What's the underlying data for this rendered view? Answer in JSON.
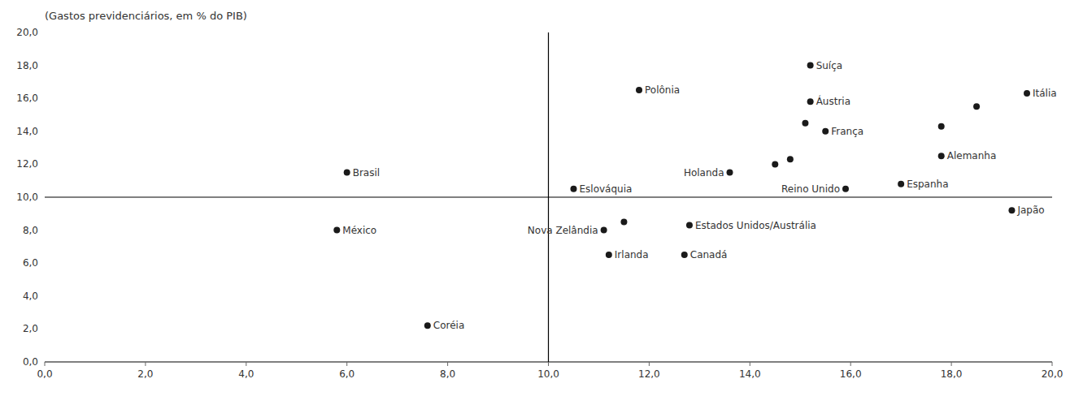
{
  "chart_data": {
    "type": "scatter",
    "title": "(Gastos previdenciários, em % do PIB)",
    "xlim": [
      0.0,
      20.0
    ],
    "ylim": [
      0.0,
      20.0
    ],
    "xticks": [
      {
        "value": 0.0,
        "label": "0,0"
      },
      {
        "value": 2.0,
        "label": "2,0"
      },
      {
        "value": 4.0,
        "label": "4,0"
      },
      {
        "value": 6.0,
        "label": "6,0"
      },
      {
        "value": 8.0,
        "label": "8,0"
      },
      {
        "value": 10.0,
        "label": "10,0"
      },
      {
        "value": 12.0,
        "label": "12,0"
      },
      {
        "value": 14.0,
        "label": "14,0"
      },
      {
        "value": 16.0,
        "label": "16,0"
      },
      {
        "value": 18.0,
        "label": "18,0"
      },
      {
        "value": 20.0,
        "label": "20,0"
      }
    ],
    "yticks": [
      {
        "value": 0.0,
        "label": "0,0"
      },
      {
        "value": 2.0,
        "label": "2,0"
      },
      {
        "value": 4.0,
        "label": "4,0"
      },
      {
        "value": 6.0,
        "label": "6,0"
      },
      {
        "value": 8.0,
        "label": "8,0"
      },
      {
        "value": 10.0,
        "label": "10,0"
      },
      {
        "value": 12.0,
        "label": "12,0"
      },
      {
        "value": 14.0,
        "label": "14,0"
      },
      {
        "value": 16.0,
        "label": "16,0"
      },
      {
        "value": 18.0,
        "label": "18,0"
      },
      {
        "value": 20.0,
        "label": "20,0"
      }
    ],
    "hline": 10.0,
    "vline": 10.0,
    "x": [
      6.0,
      5.8,
      7.6,
      11.8,
      10.5,
      13.6,
      11.1,
      11.2,
      15.2,
      15.2,
      15.5,
      17.8,
      17.0,
      15.9,
      19.5,
      19.2,
      12.8,
      12.7,
      14.5,
      14.8,
      15.1,
      17.8,
      18.5,
      11.5
    ],
    "values": [
      11.5,
      8.0,
      2.2,
      16.5,
      10.5,
      11.5,
      8.0,
      6.5,
      18.0,
      15.8,
      14.0,
      12.5,
      10.8,
      10.5,
      16.3,
      9.2,
      8.3,
      6.5,
      12.0,
      12.3,
      14.5,
      14.3,
      15.5,
      8.5
    ],
    "labels": [
      "Brasil",
      "México",
      "Coréia",
      "Polônia",
      "Eslováquia",
      "Holanda",
      "Nova Zelândia",
      "Irlanda",
      "Suíça",
      "Áustria",
      "França",
      "Alemanha",
      "Espanha",
      "Reino Unido",
      "Itália",
      "Japão",
      "Estados Unidos/Austrália",
      "Canadá",
      null,
      null,
      null,
      null,
      null,
      null
    ],
    "color": "#1a1a1a",
    "grid": false
  }
}
